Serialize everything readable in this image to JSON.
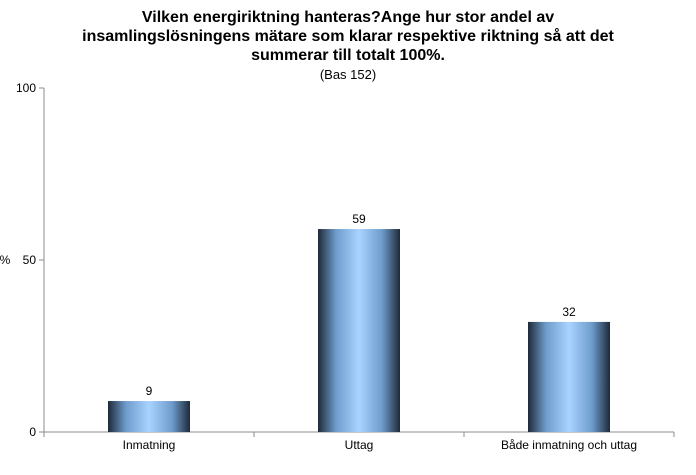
{
  "chart_data": {
    "type": "bar",
    "title_lines": [
      "Vilken energiriktning hanteras?Ange hur stor andel av",
      "insamlingslösningens mätare som klarar respektive riktning så att det",
      "summerar till totalt 100%."
    ],
    "subtitle": "(Bas 152)",
    "categories": [
      "Inmatning",
      "Uttag",
      "Både inmatning och uttag"
    ],
    "values": [
      9,
      59,
      32
    ],
    "value_labels": [
      "9",
      "59",
      "32"
    ],
    "ylabel": "%",
    "xlabel": "",
    "ylim": [
      0,
      100
    ],
    "yticks": [
      0,
      50,
      100
    ],
    "ytick_labels": [
      "0",
      "50",
      "100"
    ],
    "grid": false,
    "legend": "none"
  },
  "colors": {
    "bar_center": "#a9d3ff",
    "bar_edge": "#1e2a3a",
    "axis": "#8c8c8c",
    "text": "#000000"
  }
}
